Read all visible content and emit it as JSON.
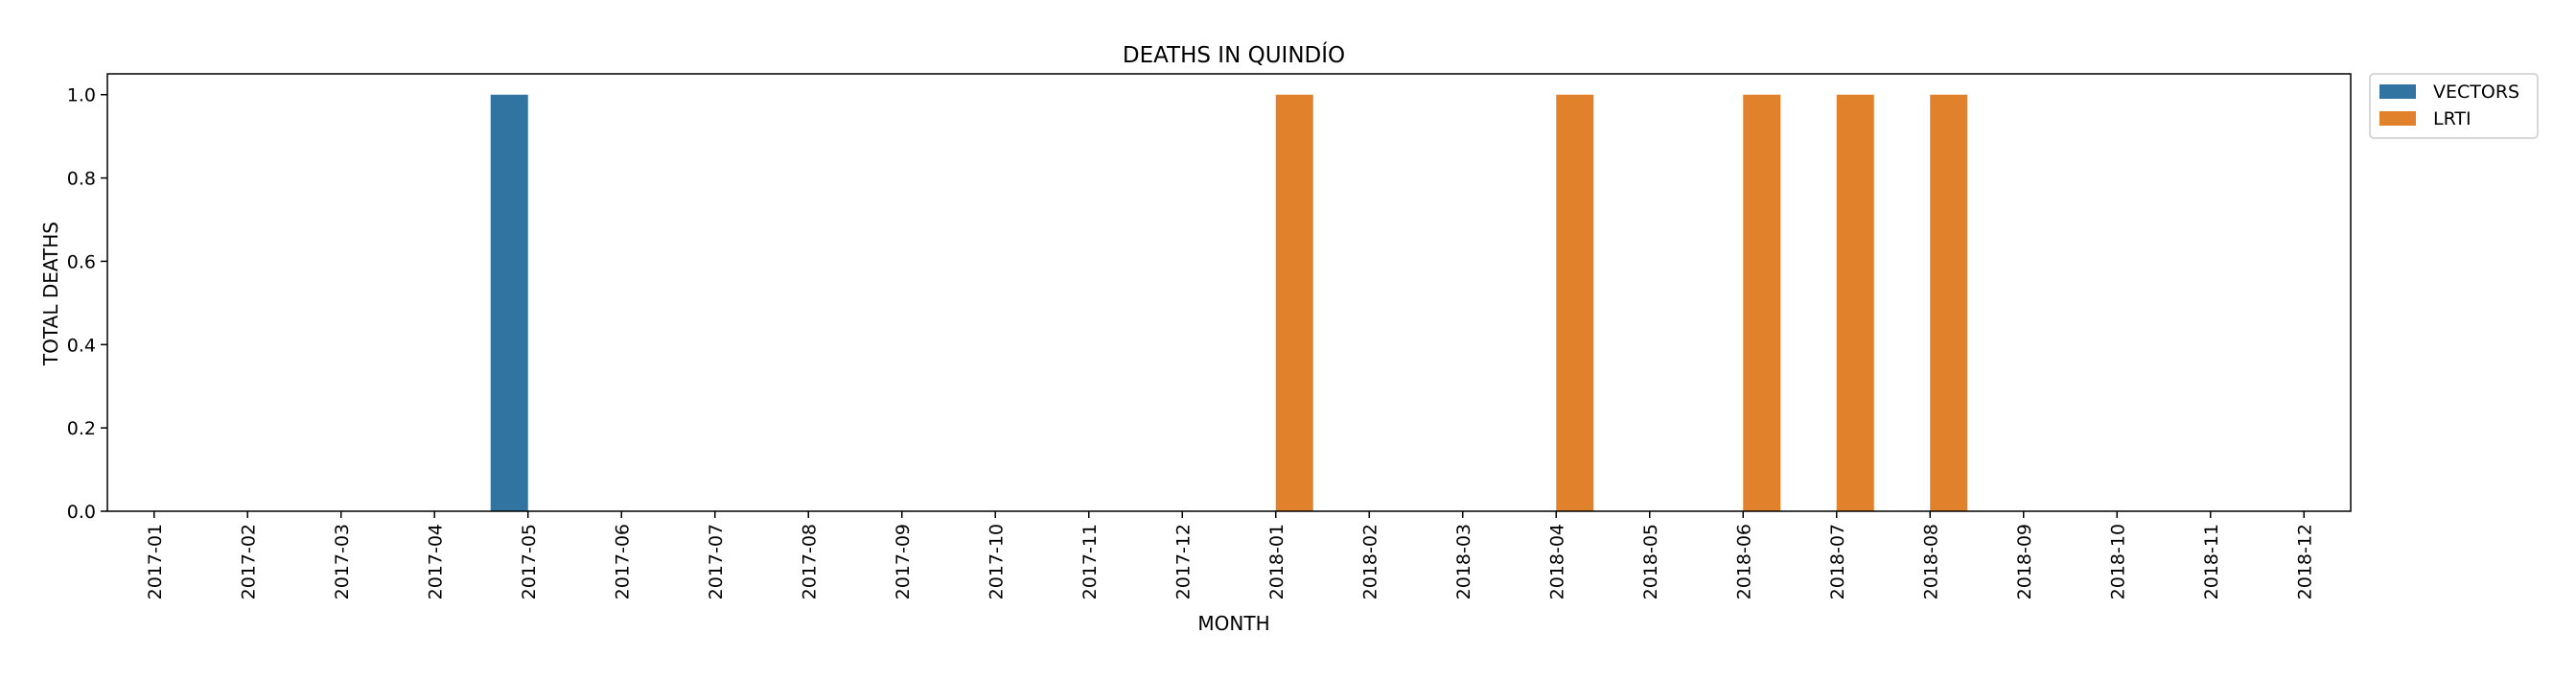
{
  "chart_data": {
    "type": "bar",
    "title": "DEATHS IN QUINDÍO",
    "xlabel": "MONTH",
    "ylabel": "TOTAL DEATHS",
    "ylim": [
      0,
      1.05
    ],
    "yticks": [
      "0.0",
      "0.2",
      "0.4",
      "0.6",
      "0.8",
      "1.0"
    ],
    "ytick_values": [
      0,
      0.2,
      0.4,
      0.6,
      0.8,
      1.0
    ],
    "grid": false,
    "legend_position": "outside-top-right",
    "categories": [
      "2017-01",
      "2017-02",
      "2017-03",
      "2017-04",
      "2017-05",
      "2017-06",
      "2017-07",
      "2017-08",
      "2017-09",
      "2017-10",
      "2017-11",
      "2017-12",
      "2018-01",
      "2018-02",
      "2018-03",
      "2018-04",
      "2018-05",
      "2018-06",
      "2018-07",
      "2018-08",
      "2018-09",
      "2018-10",
      "2018-11",
      "2018-12"
    ],
    "series": [
      {
        "name": "VECTORS",
        "color": "#3274a1",
        "values": [
          0,
          0,
          0,
          0,
          1,
          0,
          0,
          0,
          0,
          0,
          0,
          0,
          0,
          0,
          0,
          0,
          0,
          0,
          0,
          0,
          0,
          0,
          0,
          0
        ]
      },
      {
        "name": "LRTI",
        "color": "#e1812c",
        "values": [
          0,
          0,
          0,
          0,
          0,
          0,
          0,
          0,
          0,
          0,
          0,
          0,
          1,
          0,
          0,
          1,
          0,
          1,
          1,
          1,
          0,
          0,
          0,
          0
        ]
      }
    ]
  }
}
